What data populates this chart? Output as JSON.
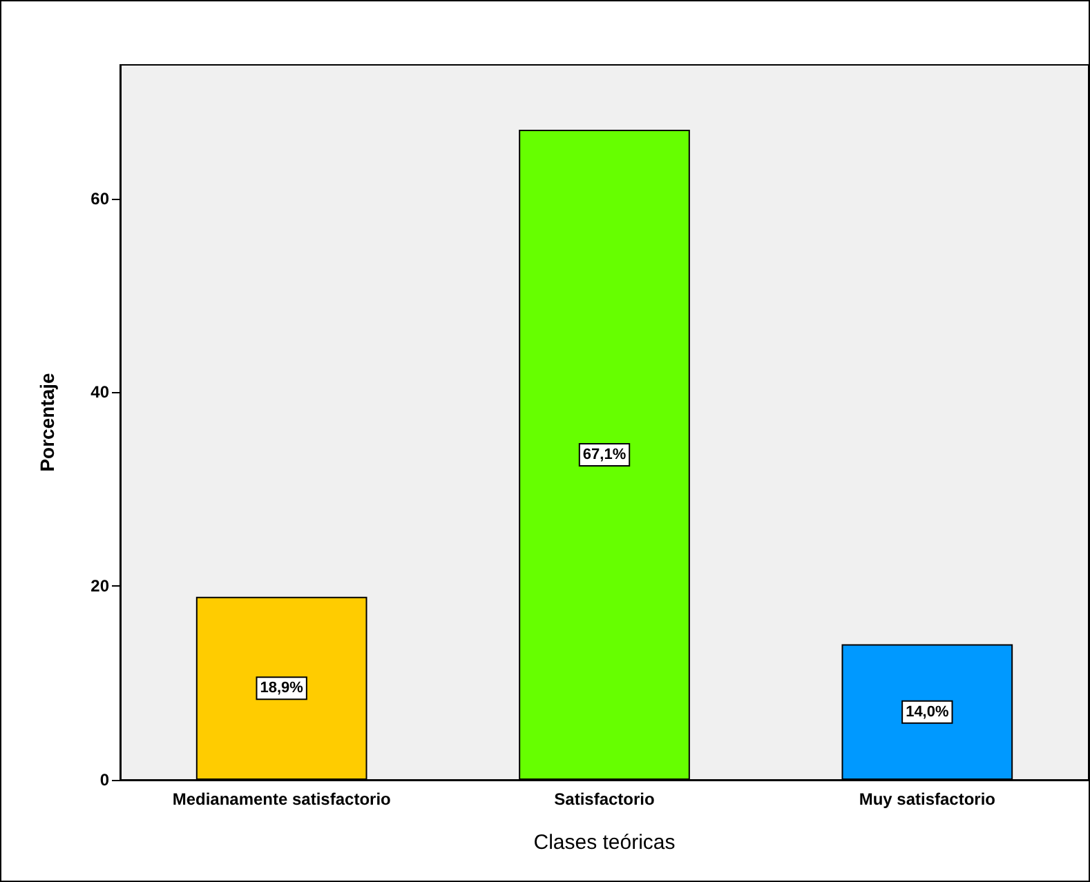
{
  "chart_data": {
    "type": "bar",
    "xlabel": "Clases teóricas",
    "ylabel": "Porcentaje",
    "categories": [
      "Medianamente satisfactorio",
      "Satisfactorio",
      "Muy satisfactorio"
    ],
    "values": [
      18.9,
      67.1,
      14.0
    ],
    "colors": [
      "#ffcc00",
      "#66ff00",
      "#0099ff"
    ],
    "value_labels": [
      "18,9%",
      "67,1%",
      "14,0%"
    ],
    "ylim": [
      0,
      73.8
    ],
    "yticks": [
      0,
      20,
      40,
      60
    ],
    "grid": false
  }
}
